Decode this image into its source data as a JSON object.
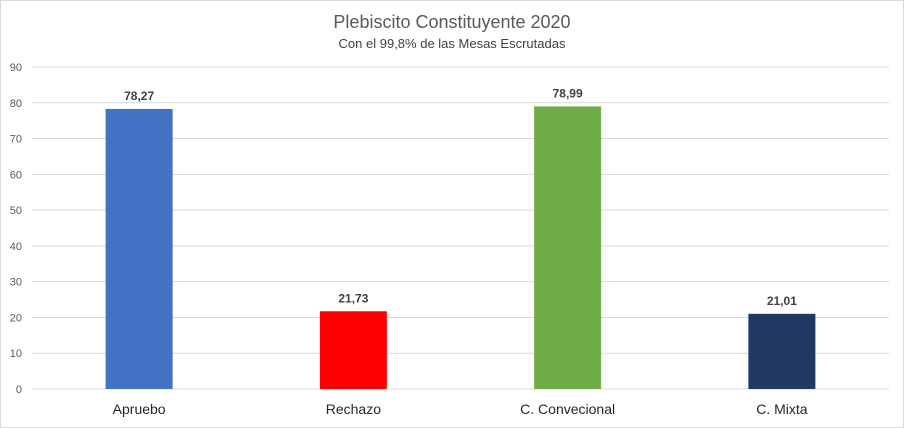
{
  "chart_data": {
    "type": "bar",
    "title": "Plebiscito Constituyente 2020",
    "subtitle": "Con el 99,8% de las Mesas Escrutadas",
    "xlabel": "",
    "ylabel": "",
    "categories": [
      "Apruebo",
      "Rechazo",
      "C. Convecional",
      "C. Mixta"
    ],
    "values": [
      78.27,
      21.73,
      78.99,
      21.01
    ],
    "data_labels": [
      "78,27",
      "21,73",
      "78,99",
      "21,01"
    ],
    "colors": [
      "#4472C4",
      "#FF0000",
      "#70AD47",
      "#203864"
    ],
    "ylim": [
      0,
      90
    ],
    "yticks": [
      0,
      10,
      20,
      30,
      40,
      50,
      60,
      70,
      80,
      90
    ],
    "ytick_labels": [
      "0",
      "10",
      "20",
      "30",
      "40",
      "50",
      "60",
      "70",
      "80",
      "90"
    ],
    "grid": true,
    "legend": "none"
  }
}
